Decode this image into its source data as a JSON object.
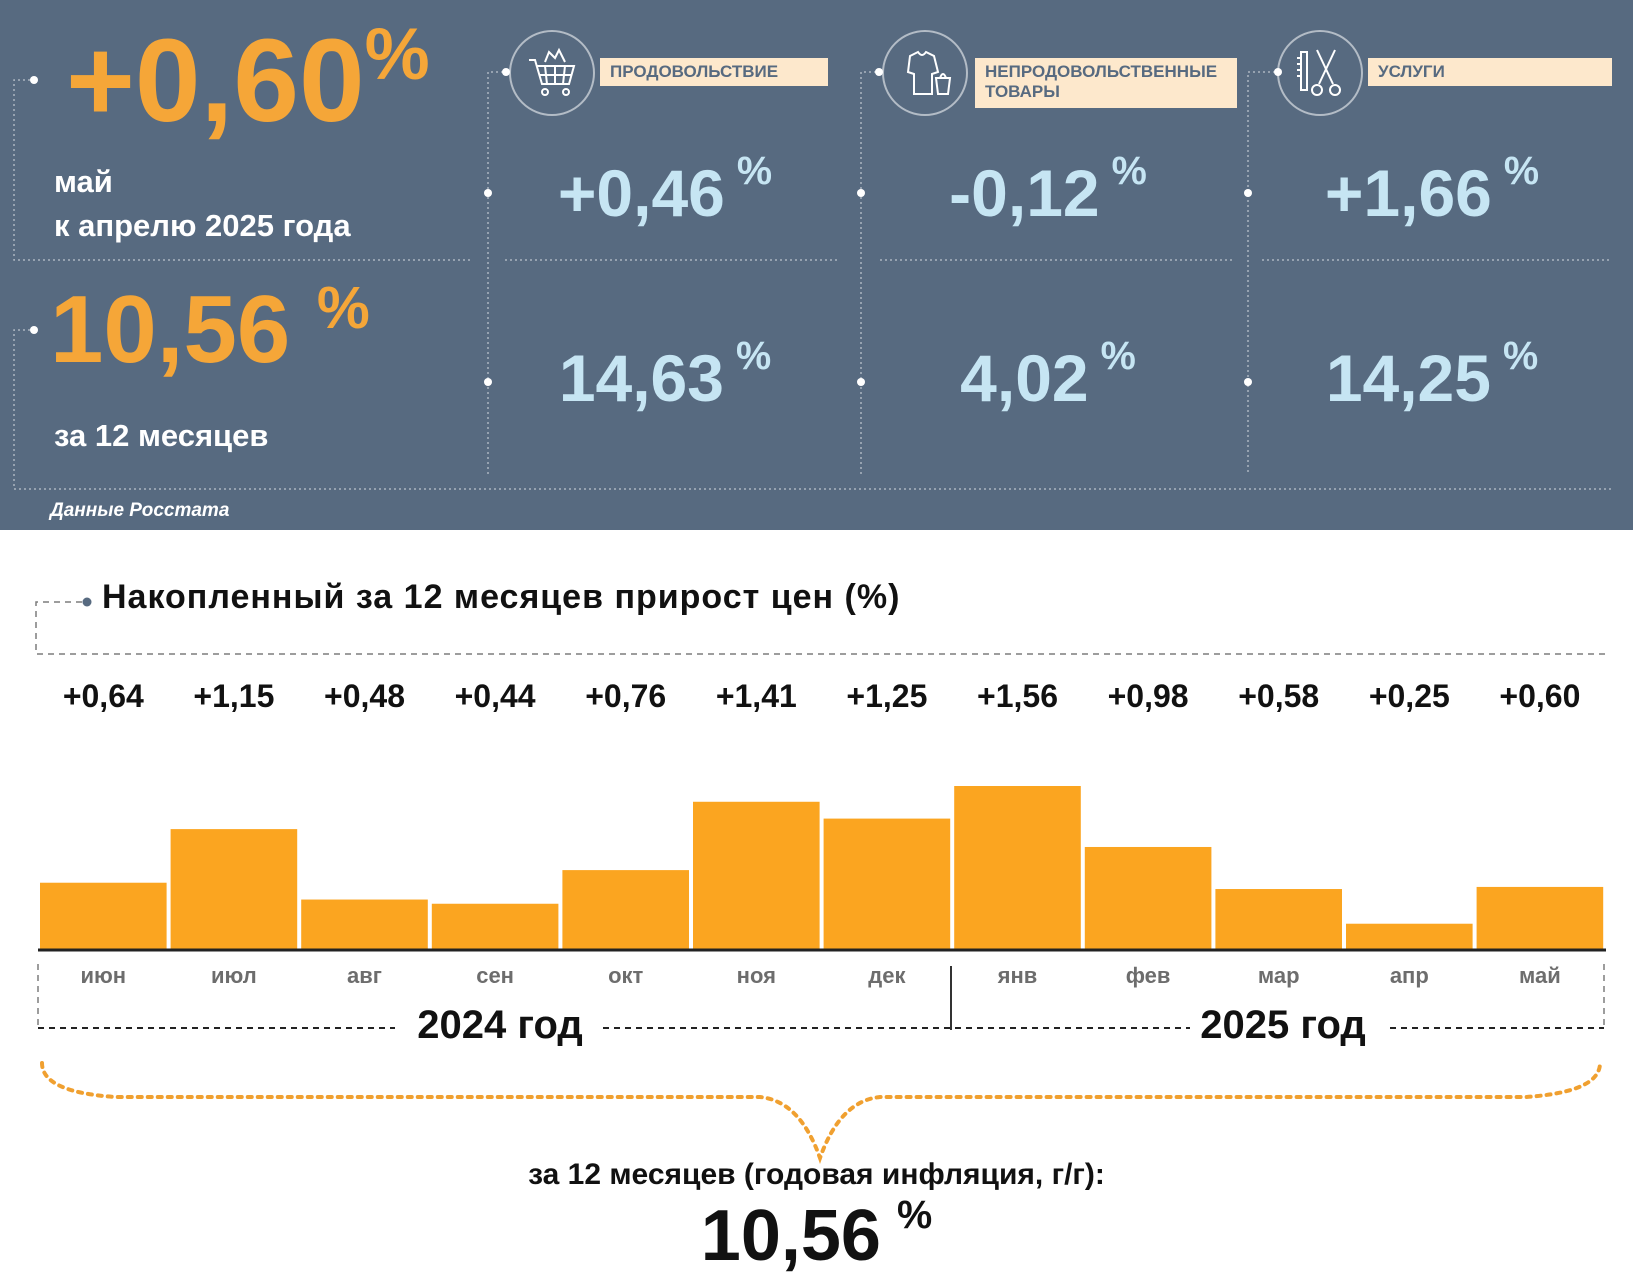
{
  "summary": {
    "monthly_value": "+0,60",
    "monthly_unit": "%",
    "monthly_label_1": "май",
    "monthly_label_2": "к апрелю 2025 года",
    "annual_value": "10,56",
    "annual_unit": "%",
    "annual_label": "за 12 месяцев",
    "source": "Данные Росстата"
  },
  "categories": [
    {
      "label": "ПРОДОВОЛЬСТВИЕ",
      "icon": "shopping-cart-icon",
      "monthly": "+0,46",
      "annual": "14,63",
      "unit": "%"
    },
    {
      "label": "НЕПРОДОВОЛЬСТВЕННЫЕ ТОВАРЫ",
      "icon": "clothing-icon",
      "monthly": "-0,12",
      "annual": "4,02",
      "unit": "%"
    },
    {
      "label": "УСЛУГИ",
      "icon": "scissors-icon",
      "monthly": "+1,66",
      "annual": "14,25",
      "unit": "%"
    }
  ],
  "chart_data": {
    "type": "bar",
    "title": "Накопленный за 12 месяцев прирост цен (%)",
    "categories": [
      "июн",
      "июл",
      "авг",
      "сен",
      "окт",
      "ноя",
      "дек",
      "янв",
      "фев",
      "мар",
      "апр",
      "май"
    ],
    "values": [
      0.64,
      1.15,
      0.48,
      0.44,
      0.76,
      1.41,
      1.25,
      1.56,
      0.98,
      0.58,
      0.25,
      0.6
    ],
    "value_labels": [
      "+0,64",
      "+1,15",
      "+0,48",
      "+0,44",
      "+0,76",
      "+1,41",
      "+1,25",
      "+1,56",
      "+0,98",
      "+0,58",
      "+0,25",
      "+0,60"
    ],
    "year_labels": [
      "2024 год",
      "2025 год"
    ],
    "ylim": [
      0,
      1.56
    ],
    "bar_color": "#fba520",
    "footer_label": "за 12 месяцев (годовая инфляция, г/г):",
    "footer_value": "10,56",
    "footer_unit": "%"
  },
  "colors": {
    "panel_bg": "#576a80",
    "accent_orange": "#f5a638",
    "light_blue": "#c6e5f3",
    "label_bg": "#fde8cc"
  }
}
